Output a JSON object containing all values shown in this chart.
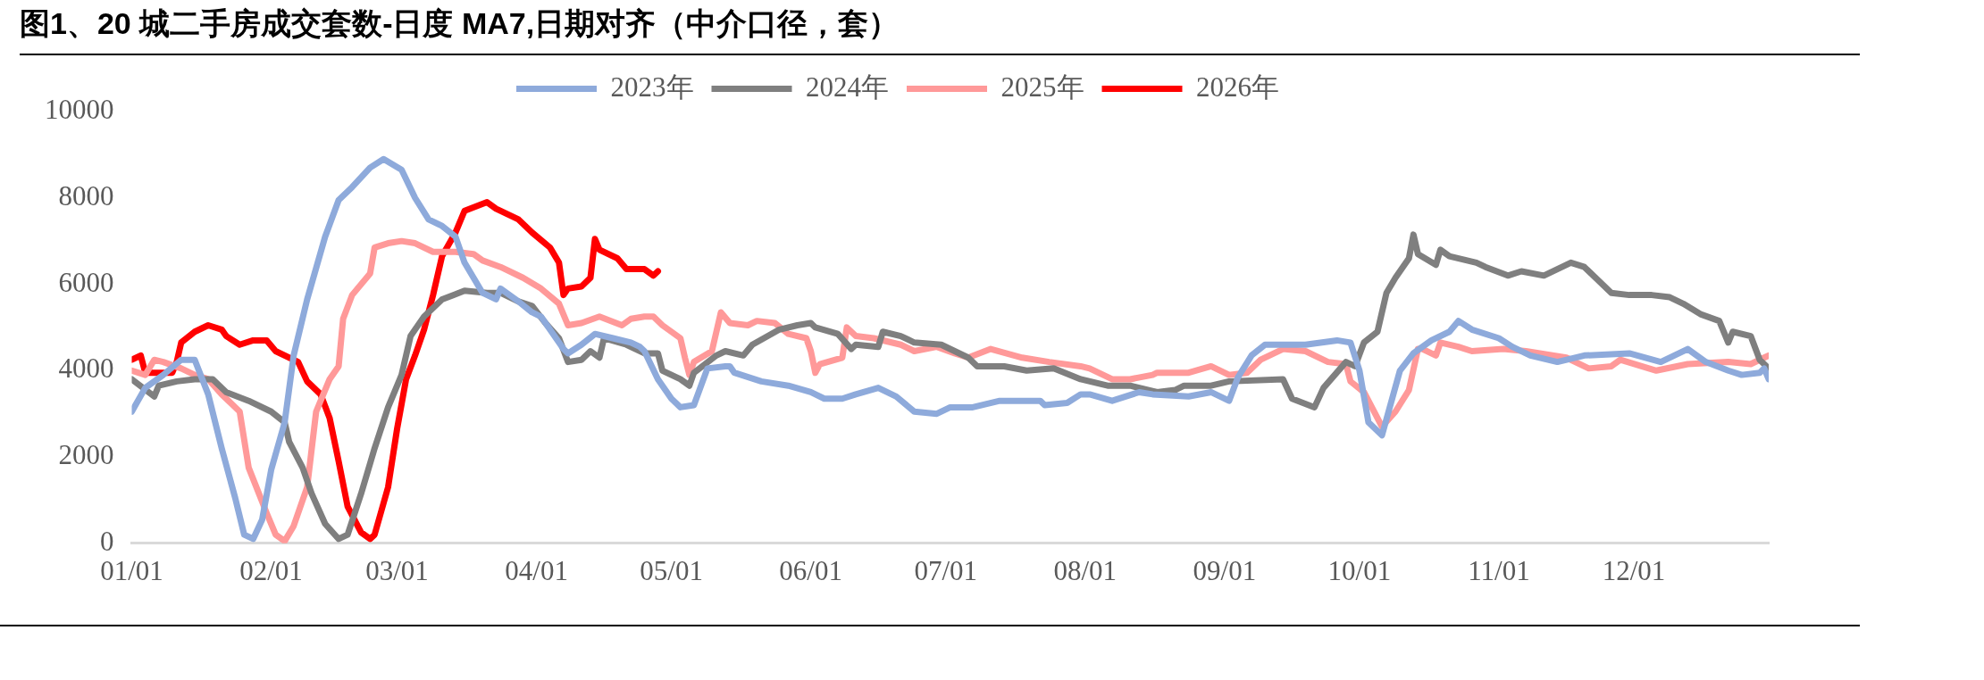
{
  "chart_data": {
    "type": "line",
    "title": "图1、20 城二手房成交套数-日度 MA7,日期对齐（中介口径，套）",
    "xlim": [
      "--01-01",
      "--12-31"
    ],
    "xticks": [
      {
        "value": "--01-01",
        "label": "01/01"
      },
      {
        "value": "--02-01",
        "label": "02/01"
      },
      {
        "value": "--03-01",
        "label": "03/01"
      },
      {
        "value": "--04-01",
        "label": "04/01"
      },
      {
        "value": "--05-01",
        "label": "05/01"
      },
      {
        "value": "--06-01",
        "label": "06/01"
      },
      {
        "value": "--07-01",
        "label": "07/01"
      },
      {
        "value": "--08-01",
        "label": "08/01"
      },
      {
        "value": "--09-01",
        "label": "09/01"
      },
      {
        "value": "--10-01",
        "label": "10/01"
      },
      {
        "value": "--11-01",
        "label": "11/01"
      },
      {
        "value": "--12-01",
        "label": "12/01"
      }
    ],
    "ylim": [
      0,
      10000
    ],
    "yticks": [
      0,
      2000,
      4000,
      6000,
      8000,
      10000
    ],
    "legend": "top",
    "marker": "none",
    "line_style": "solid",
    "series": [
      {
        "name": "2023年",
        "color": "#8eaadb",
        "x": [
          "--01-01",
          "--01-04",
          "--01-08",
          "--01-12",
          "--01-15",
          "--01-18",
          "--01-21",
          "--01-24",
          "--01-26",
          "--01-28",
          "--01-30",
          "--02-01",
          "--02-04",
          "--02-06",
          "--02-09",
          "--02-13",
          "--02-16",
          "--02-19",
          "--02-23",
          "--02-26",
          "--03-02",
          "--03-05",
          "--03-08",
          "--03-11",
          "--03-14",
          "--03-16",
          "--03-18",
          "--03-20",
          "--03-23",
          "--03-24",
          "--03-28",
          "--03-31",
          "--04-02",
          "--04-07",
          "--04-08",
          "--04-11",
          "--04-14",
          "--04-18",
          "--04-22",
          "--04-24",
          "--04-25",
          "--04-28",
          "--05-01",
          "--05-03",
          "--05-06",
          "--05-09",
          "--05-13",
          "--05-14",
          "--05-15",
          "--05-21",
          "--05-27",
          "--06-01",
          "--06-04",
          "--06-08",
          "--06-11",
          "--06-16",
          "--06-20",
          "--06-24",
          "--06-29",
          "--07-02",
          "--07-07",
          "--07-13",
          "--07-22",
          "--07-23",
          "--07-28",
          "--07-31",
          "--08-02",
          "--08-07",
          "--08-13",
          "--08-16",
          "--08-24",
          "--08-29",
          "--09-02",
          "--09-04",
          "--09-07",
          "--09-10",
          "--09-19",
          "--09-26",
          "--09-29",
          "--10-01",
          "--10-03",
          "--10-06",
          "--10-10",
          "--10-13",
          "--10-17",
          "--10-21",
          "--10-23",
          "--10-26",
          "--11-01",
          "--11-04",
          "--11-08",
          "--11-14",
          "--11-20",
          "--11-30",
          "--12-07",
          "--12-13",
          "--12-17",
          "--12-22",
          "--12-25",
          "--12-29",
          "--12-30",
          "--12-31"
        ],
        "values": [
          3050,
          3600,
          3900,
          4250,
          4250,
          3450,
          2200,
          1050,
          200,
          100,
          550,
          1700,
          2800,
          4350,
          5650,
          7100,
          7950,
          8250,
          8700,
          8900,
          8650,
          8000,
          7500,
          7350,
          7100,
          6500,
          6150,
          5800,
          5650,
          5900,
          5600,
          5350,
          5250,
          4500,
          4400,
          4600,
          4850,
          4750,
          4650,
          4550,
          4450,
          3800,
          3350,
          3150,
          3200,
          4050,
          4100,
          4100,
          3950,
          3750,
          3650,
          3500,
          3350,
          3350,
          3450,
          3600,
          3400,
          3050,
          3000,
          3150,
          3150,
          3300,
          3300,
          3200,
          3250,
          3450,
          3450,
          3300,
          3500,
          3450,
          3400,
          3500,
          3300,
          3850,
          4350,
          4600,
          4600,
          4700,
          4650,
          4000,
          2800,
          2500,
          4000,
          4400,
          4700,
          4900,
          5150,
          4950,
          4750,
          4550,
          4350,
          4200,
          4350,
          4400,
          4200,
          4500,
          4200,
          4000,
          3900,
          3950,
          4050,
          3800
        ]
      },
      {
        "name": "2024年",
        "color": "#7f7f7f",
        "x": [
          "--01-01",
          "--01-06",
          "--01-07",
          "--01-11",
          "--01-15",
          "--01-19",
          "--01-22",
          "--01-27",
          "--02-01",
          "--02-04",
          "--02-05",
          "--02-08",
          "--02-10",
          "--02-13",
          "--02-16",
          "--02-18",
          "--02-21",
          "--02-24",
          "--02-27",
          "--03-02",
          "--03-04",
          "--03-07",
          "--03-11",
          "--03-16",
          "--03-21",
          "--03-24",
          "--03-28",
          "--03-31",
          "--04-03",
          "--04-06",
          "--04-08",
          "--04-11",
          "--04-13",
          "--04-15",
          "--04-16",
          "--04-21",
          "--04-25",
          "--04-28",
          "--04-29",
          "--05-03",
          "--05-05",
          "--05-06",
          "--05-11",
          "--05-13",
          "--05-17",
          "--05-19",
          "--05-25",
          "--05-29",
          "--06-01",
          "--06-02",
          "--06-07",
          "--06-10",
          "--06-11",
          "--06-16",
          "--06-17",
          "--06-21",
          "--06-24",
          "--06-30",
          "--07-06",
          "--07-08",
          "--07-14",
          "--07-19",
          "--07-25",
          "--07-31",
          "--08-06",
          "--08-11",
          "--08-17",
          "--08-21",
          "--08-23",
          "--08-29",
          "--09-02",
          "--09-14",
          "--09-16",
          "--09-21",
          "--09-23",
          "--09-28",
          "--09-30",
          "--10-02",
          "--10-05",
          "--10-07",
          "--10-09",
          "--10-12",
          "--10-13",
          "--10-14",
          "--10-18",
          "--10-19",
          "--10-21",
          "--10-27",
          "--10-29",
          "--11-03",
          "--11-06",
          "--11-11",
          "--11-17",
          "--11-20",
          "--11-26",
          "--11-30",
          "--12-05",
          "--12-09",
          "--12-12",
          "--12-16",
          "--12-20",
          "--12-22",
          "--12-23",
          "--12-27",
          "--12-29",
          "--12-31"
        ],
        "values": [
          3800,
          3400,
          3650,
          3750,
          3800,
          3800,
          3500,
          3300,
          3050,
          2800,
          2350,
          1750,
          1150,
          450,
          100,
          200,
          1150,
          2200,
          3150,
          3900,
          4800,
          5250,
          5650,
          5850,
          5800,
          5800,
          5600,
          5500,
          5100,
          4750,
          4200,
          4250,
          4450,
          4300,
          4750,
          4600,
          4400,
          4400,
          4000,
          3800,
          3650,
          3950,
          4350,
          4450,
          4350,
          4600,
          4950,
          5050,
          5100,
          5000,
          4850,
          4500,
          4600,
          4550,
          4900,
          4800,
          4650,
          4600,
          4300,
          4100,
          4100,
          4000,
          4050,
          3800,
          3650,
          3650,
          3500,
          3550,
          3650,
          3650,
          3750,
          3800,
          3350,
          3150,
          3600,
          4200,
          4100,
          4650,
          4900,
          5800,
          6150,
          6600,
          7150,
          6700,
          6450,
          6800,
          6650,
          6500,
          6400,
          6200,
          6300,
          6200,
          6500,
          6400,
          5800,
          5750,
          5750,
          5700,
          5550,
          5300,
          5150,
          4650,
          4900,
          4800,
          4250,
          4050
        ]
      },
      {
        "name": "2025年",
        "color": "#ff9999",
        "x": [
          "--01-01",
          "--01-04",
          "--01-06",
          "--01-08",
          "--01-12",
          "--01-15",
          "--01-18",
          "--01-21",
          "--01-25",
          "--01-27",
          "--01-31",
          "--02-02",
          "--02-04",
          "--02-06",
          "--02-09",
          "--02-11",
          "--02-14",
          "--02-16",
          "--02-17",
          "--02-19",
          "--02-23",
          "--02-24",
          "--02-27",
          "--03-02",
          "--03-05",
          "--03-09",
          "--03-14",
          "--03-18",
          "--03-20",
          "--03-24",
          "--03-29",
          "--04-02",
          "--04-06",
          "--04-08",
          "--04-11",
          "--04-15",
          "--04-20",
          "--04-22",
          "--04-25",
          "--04-27",
          "--04-29",
          "--05-03",
          "--05-04",
          "--05-05",
          "--05-06",
          "--05-10",
          "--05-12",
          "--05-14",
          "--05-18",
          "--05-20",
          "--05-24",
          "--05-27",
          "--05-31",
          "--06-01",
          "--06-02",
          "--06-03",
          "--06-08",
          "--06-09",
          "--06-11",
          "--06-15",
          "--06-21",
          "--06-24",
          "--06-29",
          "--07-03",
          "--07-06",
          "--07-11",
          "--07-18",
          "--07-24",
          "--07-31",
          "--08-02",
          "--08-07",
          "--08-11",
          "--08-16",
          "--08-17",
          "--08-24",
          "--08-29",
          "--09-02",
          "--09-06",
          "--09-09",
          "--09-14",
          "--09-19",
          "--09-24",
          "--09-28",
          "--09-29",
          "--10-02",
          "--10-06",
          "--10-09",
          "--10-12",
          "--10-14",
          "--10-15",
          "--10-18",
          "--10-19",
          "--10-23",
          "--10-26",
          "--11-02",
          "--11-07",
          "--11-16",
          "--11-21",
          "--11-26",
          "--11-28",
          "--12-06",
          "--12-13",
          "--12-22",
          "--12-27",
          "--12-30",
          "--12-31"
        ],
        "values": [
          4000,
          3900,
          4250,
          4200,
          4050,
          3900,
          3800,
          3450,
          3050,
          1750,
          700,
          200,
          50,
          400,
          1300,
          3050,
          3800,
          4100,
          5200,
          5750,
          6250,
          6850,
          6950,
          7000,
          6950,
          6750,
          6750,
          6700,
          6550,
          6400,
          6150,
          5900,
          5550,
          5050,
          5100,
          5250,
          5050,
          5200,
          5250,
          5250,
          5050,
          4750,
          4300,
          3900,
          4200,
          4450,
          5350,
          5100,
          5050,
          5150,
          5100,
          4850,
          4750,
          4450,
          3950,
          4150,
          4300,
          5000,
          4800,
          4750,
          4600,
          4450,
          4550,
          4400,
          4300,
          4500,
          4300,
          4200,
          4100,
          4050,
          3800,
          3800,
          3900,
          3950,
          3950,
          4100,
          3900,
          3950,
          4250,
          4500,
          4450,
          4200,
          4150,
          3750,
          3500,
          2700,
          3050,
          3550,
          4500,
          4500,
          4350,
          4650,
          4550,
          4450,
          4500,
          4450,
          4300,
          4050,
          4100,
          4250,
          4000,
          4150,
          4200,
          4150,
          4300,
          4350
        ]
      },
      {
        "name": "2026年",
        "color": "#ff0000",
        "x": [
          "--01-01",
          "--01-03",
          "--01-04",
          "--01-07",
          "--01-10",
          "--01-11",
          "--01-12",
          "--01-15",
          "--01-18",
          "--01-21",
          "--01-22",
          "--01-25",
          "--01-28",
          "--01-31",
          "--02-02",
          "--02-07",
          "--02-09",
          "--02-12",
          "--02-14",
          "--02-16",
          "--02-18",
          "--02-21",
          "--02-23",
          "--02-24",
          "--02-27",
          "--03-01",
          "--03-03",
          "--03-05",
          "--03-07",
          "--03-09",
          "--03-11",
          "--03-14",
          "--03-16",
          "--03-21",
          "--03-23",
          "--03-28",
          "--03-31",
          "--04-04",
          "--04-06",
          "--04-07",
          "--04-08",
          "--04-11",
          "--04-13",
          "--04-14",
          "--04-15",
          "--04-19",
          "--04-21",
          "--04-25",
          "--04-27",
          "--04-28"
        ],
        "values": [
          4250,
          4350,
          3950,
          3950,
          3950,
          4200,
          4650,
          4900,
          5050,
          4950,
          4800,
          4600,
          4700,
          4700,
          4450,
          4200,
          3750,
          3450,
          2900,
          1900,
          850,
          250,
          100,
          200,
          1300,
          2650,
          3800,
          4350,
          4950,
          5750,
          6650,
          7200,
          7700,
          7900,
          7750,
          7500,
          7200,
          6850,
          6500,
          5750,
          5900,
          5950,
          6150,
          7050,
          6800,
          6600,
          6350,
          6350,
          6200,
          6300
        ]
      }
    ]
  }
}
